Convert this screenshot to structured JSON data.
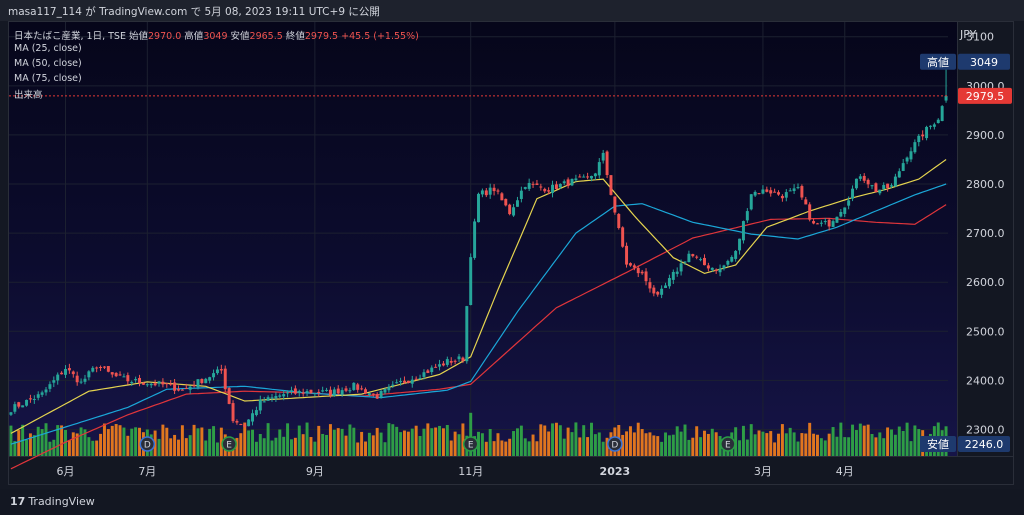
{
  "header": {
    "publish_line": "masa117_114 が TradingView.com で 5月 08, 2023 19:11 UTC+9 に公開"
  },
  "legend": {
    "symbol": "日本たばこ産業, 1日, TSE",
    "open_label": "始値",
    "open_value": "2970.0",
    "high_label": "高値",
    "high_value": "3049",
    "low_label": "安値",
    "low_value": "2965.5",
    "close_label": "終値",
    "close_value": "2979.5",
    "change": "+45.5 (+1.55%)",
    "ma25": "MA (25, close)",
    "ma50": "MA (50, close)",
    "ma75": "MA (75, close)",
    "volume": "出来高"
  },
  "price_scale": {
    "currency": "JPY"
  },
  "footer": {
    "brand": "TradingView"
  },
  "colors": {
    "up": "#26a69a",
    "down": "#ef5350",
    "ma25": "#e5d44f",
    "ma50": "#1ba7d8",
    "ma75": "#e0353b",
    "vol_up": "#2e9d46",
    "vol_down": "#e0761f",
    "current_price_label": "#e53935",
    "marker_label": "#1e3a6e"
  },
  "markers": {
    "high_label": "高値",
    "high_value": "3049",
    "low_label": "安値",
    "low_value": "2246.0",
    "last_price": "2979.5"
  },
  "chart_data": {
    "type": "candlestick",
    "y_ticks": [
      "3100",
      "3000.0",
      "2900.0",
      "2800.0",
      "2700.0",
      "2600.0",
      "2500.0",
      "2400.0",
      "2300.0"
    ],
    "y_range": [
      2246,
      3130
    ],
    "x_ticks": [
      {
        "label": "6月",
        "index": 14
      },
      {
        "label": "7月",
        "index": 35
      },
      {
        "label": "9月",
        "index": 78
      },
      {
        "label": "11月",
        "index": 118
      },
      {
        "label": "2023",
        "index": 155
      },
      {
        "label": "3月",
        "index": 193
      },
      {
        "label": "4月",
        "index": 214
      }
    ],
    "event_markers": [
      {
        "label": "D",
        "index": 35
      },
      {
        "label": "E",
        "index": 56
      },
      {
        "label": "E",
        "index": 118
      },
      {
        "label": "D",
        "index": 155
      },
      {
        "label": "E",
        "index": 184
      }
    ],
    "ohlc_anchor_closes": [
      [
        0,
        2342
      ],
      [
        8,
        2372
      ],
      [
        14,
        2425
      ],
      [
        18,
        2395
      ],
      [
        22,
        2430
      ],
      [
        26,
        2410
      ],
      [
        30,
        2400
      ],
      [
        35,
        2395
      ],
      [
        40,
        2390
      ],
      [
        44,
        2380
      ],
      [
        50,
        2405
      ],
      [
        54,
        2420
      ],
      [
        57,
        2320
      ],
      [
        60,
        2308
      ],
      [
        64,
        2355
      ],
      [
        70,
        2372
      ],
      [
        76,
        2377
      ],
      [
        82,
        2375
      ],
      [
        88,
        2388
      ],
      [
        94,
        2368
      ],
      [
        100,
        2395
      ],
      [
        106,
        2415
      ],
      [
        112,
        2438
      ],
      [
        116,
        2445
      ],
      [
        118,
        2658
      ],
      [
        120,
        2778
      ],
      [
        124,
        2790
      ],
      [
        128,
        2742
      ],
      [
        132,
        2800
      ],
      [
        138,
        2790
      ],
      [
        144,
        2805
      ],
      [
        148,
        2810
      ],
      [
        150,
        2825
      ],
      [
        152,
        2858
      ],
      [
        156,
        2705
      ],
      [
        158,
        2638
      ],
      [
        162,
        2615
      ],
      [
        166,
        2568
      ],
      [
        170,
        2615
      ],
      [
        174,
        2658
      ],
      [
        178,
        2635
      ],
      [
        182,
        2625
      ],
      [
        186,
        2660
      ],
      [
        190,
        2782
      ],
      [
        194,
        2787
      ],
      [
        198,
        2777
      ],
      [
        202,
        2788
      ],
      [
        206,
        2716
      ],
      [
        210,
        2720
      ],
      [
        214,
        2758
      ],
      [
        218,
        2820
      ],
      [
        222,
        2787
      ],
      [
        226,
        2795
      ],
      [
        230,
        2860
      ],
      [
        234,
        2902
      ],
      [
        238,
        2935
      ],
      [
        240,
        2979.5
      ]
    ],
    "ma25": [
      [
        0,
        2292
      ],
      [
        20,
        2378
      ],
      [
        35,
        2397
      ],
      [
        50,
        2388
      ],
      [
        60,
        2358
      ],
      [
        75,
        2365
      ],
      [
        90,
        2372
      ],
      [
        110,
        2412
      ],
      [
        118,
        2448
      ],
      [
        125,
        2585
      ],
      [
        135,
        2770
      ],
      [
        145,
        2805
      ],
      [
        152,
        2810
      ],
      [
        160,
        2735
      ],
      [
        170,
        2650
      ],
      [
        178,
        2618
      ],
      [
        186,
        2635
      ],
      [
        194,
        2712
      ],
      [
        205,
        2745
      ],
      [
        215,
        2770
      ],
      [
        225,
        2790
      ],
      [
        233,
        2810
      ],
      [
        240,
        2850
      ]
    ],
    "ma50": [
      [
        0,
        2270
      ],
      [
        30,
        2345
      ],
      [
        40,
        2382
      ],
      [
        60,
        2388
      ],
      [
        75,
        2375
      ],
      [
        95,
        2365
      ],
      [
        112,
        2380
      ],
      [
        118,
        2398
      ],
      [
        130,
        2540
      ],
      [
        145,
        2700
      ],
      [
        155,
        2755
      ],
      [
        162,
        2760
      ],
      [
        175,
        2722
      ],
      [
        190,
        2698
      ],
      [
        202,
        2688
      ],
      [
        212,
        2712
      ],
      [
        222,
        2745
      ],
      [
        232,
        2778
      ],
      [
        240,
        2800
      ]
    ],
    "ma75": [
      [
        0,
        2220
      ],
      [
        15,
        2278
      ],
      [
        30,
        2330
      ],
      [
        45,
        2372
      ],
      [
        60,
        2378
      ],
      [
        75,
        2375
      ],
      [
        90,
        2368
      ],
      [
        110,
        2382
      ],
      [
        118,
        2392
      ],
      [
        140,
        2548
      ],
      [
        158,
        2620
      ],
      [
        175,
        2690
      ],
      [
        195,
        2728
      ],
      [
        210,
        2730
      ],
      [
        222,
        2722
      ],
      [
        232,
        2718
      ],
      [
        240,
        2758
      ]
    ],
    "last_candle": {
      "open": 2970.0,
      "high": 3049,
      "low": 2965.5,
      "close": 2979.5
    },
    "volume_spikes": {
      "118": 3.2,
      "36": 1.6,
      "117": 1.5,
      "148": 1.4,
      "184": 1.3,
      "214": 1.4,
      "240": 2.2
    }
  }
}
